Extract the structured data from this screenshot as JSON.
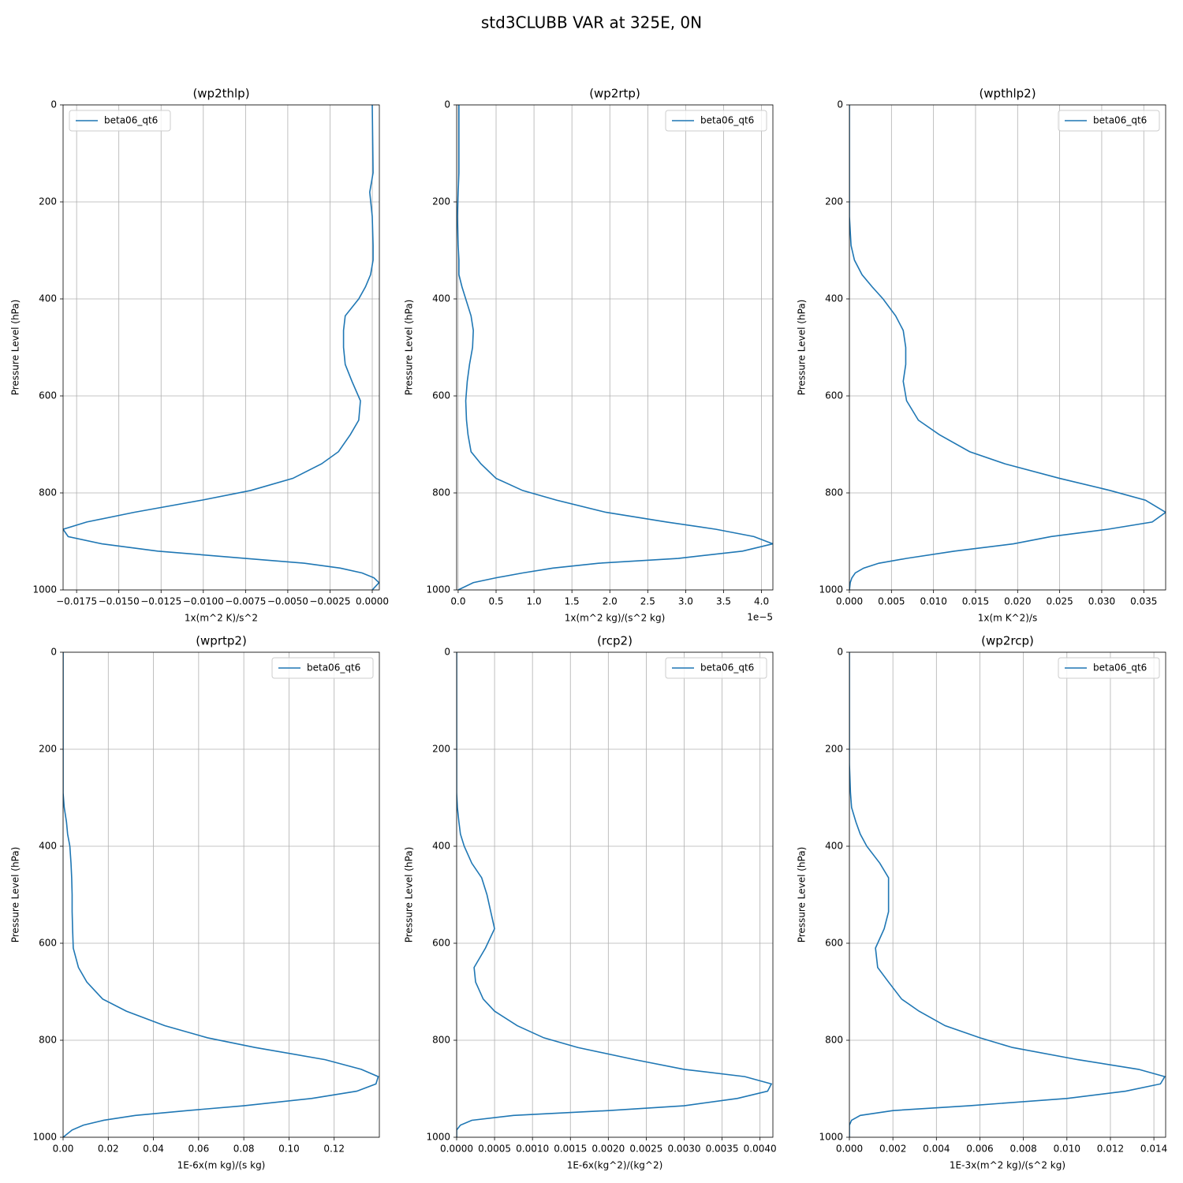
{
  "title": "std3CLUBB VAR at 325E, 0N",
  "chart_data": [
    {
      "type": "line",
      "title": "(wp2thlp)",
      "xlabel": "1x(m^2 K)/s^2",
      "ylabel": "Pressure Level (hPa)",
      "grid": true,
      "legend": "upper left",
      "xlim": [
        -0.0183,
        0.00042
      ],
      "ylim": [
        1000,
        0
      ],
      "xticks": [
        {
          "value": -0.0175,
          "label": "−0.0175"
        },
        {
          "value": -0.015,
          "label": "−0.0150"
        },
        {
          "value": -0.0125,
          "label": "−0.0125"
        },
        {
          "value": -0.01,
          "label": "−0.0100"
        },
        {
          "value": -0.0075,
          "label": "−0.0075"
        },
        {
          "value": -0.005,
          "label": "−0.0050"
        },
        {
          "value": -0.0025,
          "label": "−0.0025"
        },
        {
          "value": 0,
          "label": "0.0000"
        }
      ],
      "yticks": [
        0,
        200,
        400,
        600,
        800,
        1000
      ],
      "y": [
        0,
        140,
        180,
        230,
        290,
        320,
        350,
        375,
        400,
        435,
        465,
        500,
        535,
        570,
        610,
        650,
        680,
        715,
        740,
        770,
        795,
        815,
        840,
        860,
        875,
        890,
        905,
        920,
        935,
        945,
        955,
        965,
        975,
        985,
        1000
      ],
      "series": [
        {
          "name": "beta06_qt6",
          "color": "#1f77b4",
          "values": [
            0,
            5e-05,
            -0.00015,
            0,
            5e-05,
            5e-05,
            -0.0001,
            -0.0004,
            -0.0008,
            -0.0016,
            -0.0017,
            -0.0017,
            -0.0016,
            -0.0012,
            -0.0007,
            -0.0008,
            -0.0013,
            -0.002,
            -0.003,
            -0.0047,
            -0.0072,
            -0.0101,
            -0.0141,
            -0.0169,
            -0.0183,
            -0.018,
            -0.016,
            -0.0127,
            -0.0075,
            -0.004,
            -0.0019,
            -0.0006,
            0.0001,
            0.0004,
            0
          ]
        }
      ]
    },
    {
      "type": "line",
      "title": "(wp2rtp)",
      "xlabel": "1x(m^2 kg)/(s^2 kg)",
      "xoffset": "1e−5",
      "ylabel": "Pressure Level (hPa)",
      "grid": true,
      "legend": "upper right",
      "xlim": [
        -0.02,
        4.15
      ],
      "ylim": [
        1000,
        0
      ],
      "xticks": [
        {
          "value": 0,
          "label": "0.0"
        },
        0.5,
        {
          "value": 1,
          "label": "1.0"
        },
        1.5,
        {
          "value": 2,
          "label": "2.0"
        },
        2.5,
        {
          "value": 3,
          "label": "3.0"
        },
        3.5,
        {
          "value": 4,
          "label": "4.0"
        }
      ],
      "yticks": [
        0,
        200,
        400,
        600,
        800,
        1000
      ],
      "y": [
        0,
        140,
        180,
        230,
        290,
        320,
        350,
        375,
        400,
        435,
        465,
        500,
        535,
        570,
        610,
        650,
        680,
        715,
        740,
        770,
        795,
        815,
        840,
        860,
        875,
        890,
        905,
        920,
        935,
        945,
        955,
        965,
        975,
        985,
        1000
      ],
      "series": [
        {
          "name": "beta06_qt6",
          "color": "#1f77b4",
          "values": [
            0.01,
            0.01,
            0,
            -0.01,
            0,
            0.01,
            0.01,
            0.05,
            0.1,
            0.17,
            0.2,
            0.19,
            0.15,
            0.12,
            0.1,
            0.11,
            0.13,
            0.17,
            0.3,
            0.5,
            0.85,
            1.3,
            1.95,
            2.75,
            3.4,
            3.9,
            4.15,
            3.75,
            2.9,
            1.85,
            1.25,
            0.85,
            0.5,
            0.2,
            0
          ]
        }
      ]
    },
    {
      "type": "line",
      "title": "(wpthlp2)",
      "xlabel": "1x(m K^2)/s",
      "ylabel": "Pressure Level (hPa)",
      "grid": true,
      "legend": "upper right",
      "xlim": [
        0,
        0.0376
      ],
      "ylim": [
        1000,
        0
      ],
      "xticks": [
        {
          "value": 0,
          "label": "0.000"
        },
        0.005,
        {
          "value": 0.01,
          "label": "0.010"
        },
        0.015,
        {
          "value": 0.02,
          "label": "0.020"
        },
        0.025,
        {
          "value": 0.03,
          "label": "0.030"
        },
        0.035
      ],
      "yticks": [
        0,
        200,
        400,
        600,
        800,
        1000
      ],
      "y": [
        0,
        140,
        180,
        230,
        290,
        320,
        350,
        375,
        400,
        435,
        465,
        500,
        535,
        570,
        610,
        650,
        680,
        715,
        740,
        770,
        795,
        815,
        840,
        860,
        875,
        890,
        905,
        920,
        935,
        945,
        955,
        965,
        975,
        985,
        1000
      ],
      "series": [
        {
          "name": "beta06_qt6",
          "color": "#1f77b4",
          "values": [
            0,
            0,
            0,
            0,
            0.0002,
            0.0006,
            0.0015,
            0.0027,
            0.004,
            0.0055,
            0.0064,
            0.0067,
            0.0067,
            0.0064,
            0.0068,
            0.0082,
            0.0107,
            0.0143,
            0.0185,
            0.025,
            0.031,
            0.0352,
            0.0376,
            0.036,
            0.0307,
            0.024,
            0.0195,
            0.0125,
            0.0068,
            0.0035,
            0.0017,
            0.0007,
            0.0003,
            0.0001,
            0
          ]
        }
      ]
    },
    {
      "type": "line",
      "title": "(wprtp2)",
      "xlabel": "1E-6x(m kg)/(s kg)",
      "ylabel": "Pressure Level (hPa)",
      "grid": true,
      "legend": "upper right",
      "xlim": [
        0,
        0.14
      ],
      "ylim": [
        1000,
        0
      ],
      "xticks": [
        {
          "value": 0,
          "label": "0.00"
        },
        0.02,
        0.04,
        0.06,
        0.08,
        {
          "value": 0.1,
          "label": "0.10"
        },
        0.12
      ],
      "yticks": [
        0,
        200,
        400,
        600,
        800,
        1000
      ],
      "y": [
        0,
        140,
        180,
        230,
        290,
        320,
        350,
        375,
        400,
        435,
        465,
        500,
        535,
        570,
        610,
        650,
        680,
        715,
        740,
        770,
        795,
        815,
        840,
        860,
        875,
        890,
        905,
        920,
        935,
        945,
        955,
        965,
        975,
        985,
        1000
      ],
      "series": [
        {
          "name": "beta06_qt6",
          "color": "#1f77b4",
          "values": [
            0,
            0,
            0,
            0,
            0,
            0.0005,
            0.0015,
            0.002,
            0.003,
            0.0035,
            0.0038,
            0.004,
            0.004,
            0.0042,
            0.0045,
            0.0068,
            0.0105,
            0.0175,
            0.028,
            0.045,
            0.064,
            0.085,
            0.116,
            0.132,
            0.1395,
            0.1385,
            0.13,
            0.11,
            0.08,
            0.055,
            0.032,
            0.018,
            0.009,
            0.004,
            0
          ]
        }
      ]
    },
    {
      "type": "line",
      "title": "(rcp2)",
      "xlabel": "1E-6x(kg^2)/(kg^2)",
      "ylabel": "Pressure Level (hPa)",
      "grid": true,
      "legend": "upper right",
      "xlim": [
        0,
        0.00417
      ],
      "ylim": [
        1000,
        0
      ],
      "xticks": [
        {
          "value": 0,
          "label": "0.0000"
        },
        0.0005,
        {
          "value": 0.001,
          "label": "0.0010"
        },
        0.0015,
        {
          "value": 0.002,
          "label": "0.0020"
        },
        0.0025,
        {
          "value": 0.003,
          "label": "0.0030"
        },
        0.0035,
        {
          "value": 0.004,
          "label": "0.0040"
        }
      ],
      "yticks": [
        0,
        200,
        400,
        600,
        800,
        1000
      ],
      "y": [
        0,
        140,
        180,
        230,
        290,
        320,
        350,
        375,
        400,
        435,
        465,
        500,
        535,
        570,
        610,
        650,
        680,
        715,
        740,
        770,
        795,
        815,
        840,
        860,
        875,
        890,
        905,
        920,
        935,
        945,
        955,
        965,
        975,
        985,
        1000
      ],
      "series": [
        {
          "name": "beta06_qt6",
          "color": "#1f77b4",
          "values": [
            0,
            0,
            0,
            0,
            0,
            1e-05,
            3e-05,
            5e-05,
            0.0001,
            0.0002,
            0.00033,
            0.0004,
            0.00045,
            0.0005,
            0.00038,
            0.00023,
            0.00025,
            0.00035,
            0.0005,
            0.0008,
            0.00115,
            0.0016,
            0.00235,
            0.003,
            0.0038,
            0.00415,
            0.0041,
            0.0037,
            0.003,
            0.002,
            0.00075,
            0.0002,
            5e-05,
            0,
            0
          ]
        }
      ]
    },
    {
      "type": "line",
      "title": "(wp2rcp)",
      "xlabel": "1E-3x(m^2 kg)/(s^2 kg)",
      "ylabel": "Pressure Level (hPa)",
      "grid": true,
      "legend": "upper right",
      "xlim": [
        0,
        0.01454
      ],
      "ylim": [
        1000,
        0
      ],
      "xticks": [
        {
          "value": 0,
          "label": "0.000"
        },
        0.002,
        0.004,
        0.006,
        0.008,
        {
          "value": 0.01,
          "label": "0.010"
        },
        0.012,
        0.014
      ],
      "yticks": [
        0,
        200,
        400,
        600,
        800,
        1000
      ],
      "y": [
        0,
        140,
        180,
        230,
        290,
        320,
        350,
        375,
        400,
        435,
        465,
        500,
        535,
        570,
        610,
        650,
        680,
        715,
        740,
        770,
        795,
        815,
        840,
        860,
        875,
        890,
        905,
        920,
        935,
        945,
        955,
        965,
        975,
        985,
        1000
      ],
      "series": [
        {
          "name": "beta06_qt6",
          "color": "#1f77b4",
          "values": [
            0,
            0,
            0,
            0,
            5e-05,
            0.0001,
            0.0003,
            0.0005,
            0.0008,
            0.0014,
            0.0018,
            0.0018,
            0.0018,
            0.0016,
            0.0012,
            0.0013,
            0.0018,
            0.0024,
            0.0032,
            0.0044,
            0.006,
            0.0075,
            0.0105,
            0.0133,
            0.0145,
            0.0143,
            0.0127,
            0.01,
            0.0055,
            0.002,
            0.0005,
            0.0001,
            0,
            0,
            0
          ]
        }
      ]
    }
  ]
}
